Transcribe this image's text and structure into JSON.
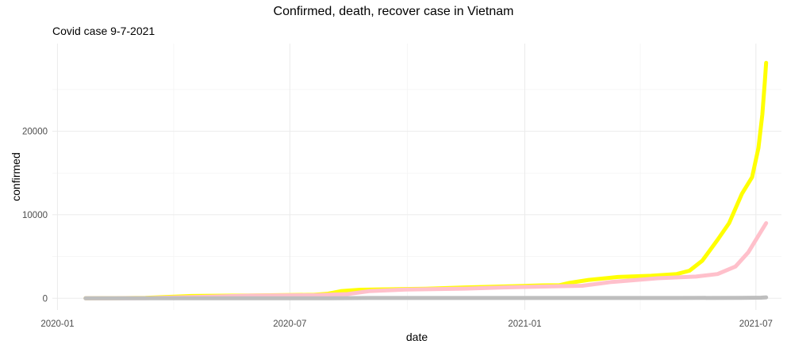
{
  "chart_data": {
    "type": "line",
    "title": "Confirmed, death, recover case in Vietnam",
    "subtitle": "Covid case 9-7-2021",
    "xlabel": "date",
    "ylabel": "confirmed",
    "x_ticks": [
      "2020-01-01",
      "2020-07-01",
      "2021-01-01",
      "2021-07-01"
    ],
    "x_tick_labels": [
      "2020-01",
      "2020-07",
      "2021-01",
      "2021-07"
    ],
    "y_ticks": [
      0,
      10000,
      20000
    ],
    "y_tick_labels": [
      "0",
      "10000",
      "20000"
    ],
    "xlim": [
      "2019-12-28",
      "2021-07-21"
    ],
    "ylim": [
      -1400,
      30500
    ],
    "grid": true,
    "legend": "none",
    "series": [
      {
        "color": "#FFFF00",
        "points": [
          [
            "2020-01-23",
            2
          ],
          [
            "2020-02-15",
            16
          ],
          [
            "2020-03-10",
            40
          ],
          [
            "2020-03-25",
            150
          ],
          [
            "2020-04-15",
            268
          ],
          [
            "2020-06-01",
            328
          ],
          [
            "2020-07-20",
            410
          ],
          [
            "2020-07-31",
            550
          ],
          [
            "2020-08-10",
            850
          ],
          [
            "2020-08-25",
            1020
          ],
          [
            "2020-09-15",
            1065
          ],
          [
            "2020-10-15",
            1140
          ],
          [
            "2020-11-15",
            1300
          ],
          [
            "2020-12-15",
            1410
          ],
          [
            "2021-01-15",
            1540
          ],
          [
            "2021-01-28",
            1560
          ],
          [
            "2021-02-05",
            1850
          ],
          [
            "2021-02-20",
            2200
          ],
          [
            "2021-03-15",
            2550
          ],
          [
            "2021-04-10",
            2690
          ],
          [
            "2021-04-30",
            2900
          ],
          [
            "2021-05-10",
            3300
          ],
          [
            "2021-05-20",
            4500
          ],
          [
            "2021-06-01",
            7000
          ],
          [
            "2021-06-10",
            9000
          ],
          [
            "2021-06-20",
            12500
          ],
          [
            "2021-06-28",
            14500
          ],
          [
            "2021-07-03",
            18000
          ],
          [
            "2021-07-06",
            22000
          ],
          [
            "2021-07-08",
            26000
          ],
          [
            "2021-07-09",
            28200
          ]
        ]
      },
      {
        "color": "#FFC0CB",
        "points": [
          [
            "2020-01-23",
            0
          ],
          [
            "2020-03-10",
            16
          ],
          [
            "2020-04-15",
            140
          ],
          [
            "2020-06-01",
            320
          ],
          [
            "2020-07-20",
            365
          ],
          [
            "2020-08-15",
            500
          ],
          [
            "2020-09-01",
            850
          ],
          [
            "2020-10-01",
            1050
          ],
          [
            "2020-11-15",
            1150
          ],
          [
            "2020-12-15",
            1300
          ],
          [
            "2021-01-15",
            1400
          ],
          [
            "2021-02-15",
            1500
          ],
          [
            "2021-03-10",
            1950
          ],
          [
            "2021-04-15",
            2400
          ],
          [
            "2021-05-15",
            2600
          ],
          [
            "2021-06-01",
            2900
          ],
          [
            "2021-06-15",
            3800
          ],
          [
            "2021-06-25",
            5500
          ],
          [
            "2021-07-03",
            7500
          ],
          [
            "2021-07-09",
            9000
          ]
        ]
      },
      {
        "color": "#BEBEBE",
        "points": [
          [
            "2020-01-23",
            0
          ],
          [
            "2020-07-31",
            0
          ],
          [
            "2020-09-01",
            35
          ],
          [
            "2021-01-01",
            35
          ],
          [
            "2021-05-01",
            35
          ],
          [
            "2021-06-20",
            50
          ],
          [
            "2021-07-05",
            70
          ],
          [
            "2021-07-09",
            107
          ]
        ]
      }
    ]
  }
}
